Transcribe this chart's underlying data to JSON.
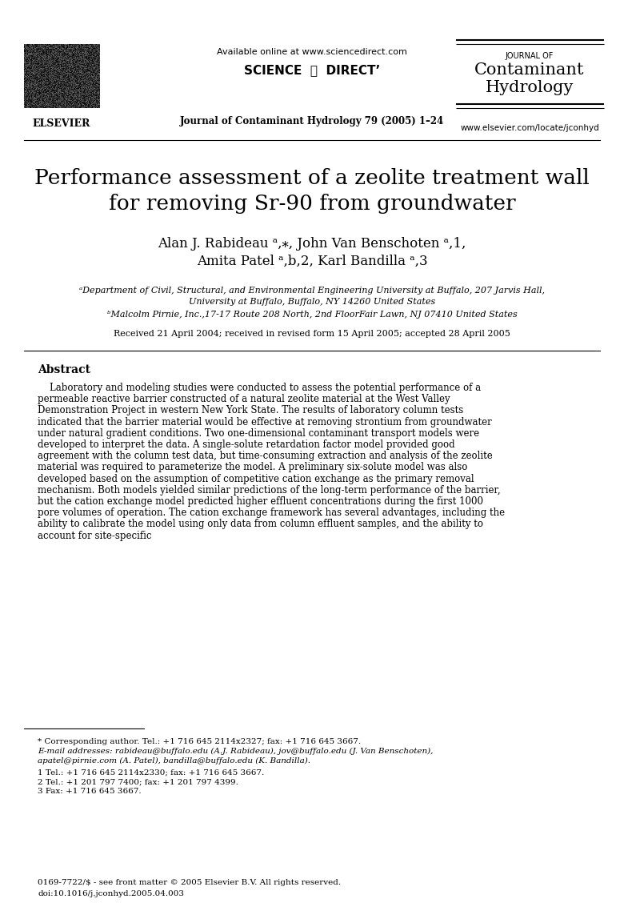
{
  "bg_color": "#ffffff",
  "header": {
    "available_online": "Available online at www.sciencedirect.com",
    "journal_info": "Journal of Contaminant Hydrology 79 (2005) 1–24",
    "website": "www.elsevier.com/locate/jconhyd",
    "journal_name_line1": "JOURNAL OF",
    "journal_name_line2": "Contaminant",
    "journal_name_line3": "Hydrology"
  },
  "title_line1": "Performance assessment of a zeolite treatment wall",
  "title_line2": "for removing Sr-90 from groundwater",
  "authors_line1": "Alan J. Rabideau ᵃ,⁎, John Van Benschoten ᵃ,1,",
  "authors_line2": "Amita Patel ᵃ,b,2, Karl Bandilla ᵃ,3",
  "affiliation_a": "ᵃDepartment of Civil, Structural, and Environmental Engineering University at Buffalo, 207 Jarvis Hall,",
  "affiliation_a2": "University at Buffalo, Buffalo, NY 14260 United States",
  "affiliation_b": "ᵇMalcolm Pirnie, Inc.,17-17 Route 208 North, 2nd FloorFair Lawn, NJ 07410 United States",
  "received": "Received 21 April 2004; received in revised form 15 April 2005; accepted 28 April 2005",
  "abstract_title": "Abstract",
  "abstract_text": "    Laboratory and modeling studies were conducted to assess the potential performance of a permeable reactive barrier constructed of a natural zeolite material at the West Valley Demonstration Project in western New York State. The results of laboratory column tests indicated that the barrier material would be effective at removing strontium from groundwater under natural gradient conditions. Two one-dimensional contaminant transport models were developed to interpret the data. A single-solute retardation factor model provided good agreement with the column test data, but time-consuming extraction and analysis of the zeolite material was required to parameterize the model. A preliminary six-solute model was also developed based on the assumption of competitive cation exchange as the primary removal mechanism. Both models yielded similar predictions of the long-term performance of the barrier, but the cation exchange model predicted higher effluent concentrations during the first 1000 pore volumes of operation. The cation exchange framework has several advantages, including the ability to calibrate the model using only data from column effluent samples, and the ability to account for site-specific",
  "footnote_star": "* Corresponding author. Tel.: +1 716 645 2114x2327; fax: +1 716 645 3667.",
  "footnote_email": "E-mail addresses: rabideau@buffalo.edu (A.J. Rabideau), jov@buffalo.edu (J. Van Benschoten),",
  "footnote_email2": "apatel@pirnie.com (A. Patel), bandilla@buffalo.edu (K. Bandilla).",
  "footnote_1": "1 Tel.: +1 716 645 2114x2330; fax: +1 716 645 3667.",
  "footnote_2": "2 Tel.: +1 201 797 7400; fax: +1 201 797 4399.",
  "footnote_3": "3 Fax: +1 716 645 3667.",
  "issn_line": "0169-7722/$ - see front matter © 2005 Elsevier B.V. All rights reserved.",
  "doi_line": "doi:10.1016/j.jconhyd.2005.04.003"
}
